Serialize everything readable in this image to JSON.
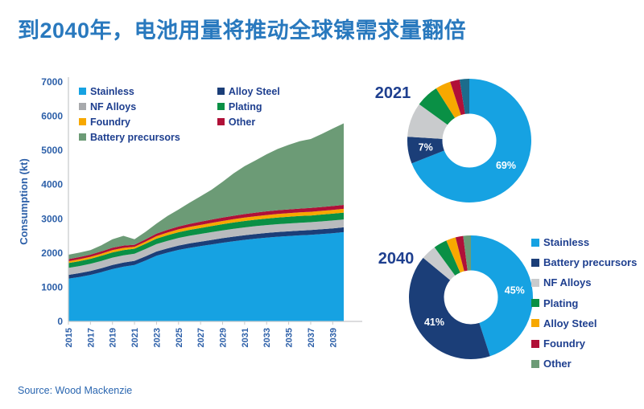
{
  "title": "到2040年，电池用量将推动全球镍需求量翻倍",
  "source": "Source: Wood Mackenzie",
  "colors": {
    "stainless": "#16A2E2",
    "alloy_steel": "#1B3E78",
    "nf_alloys": "#B9BBBE",
    "plating": "#0A9045",
    "foundry": "#F7A800",
    "other": "#B01038",
    "battery_precursors": "#6C9B76",
    "other_donut_2021": "#1C6C8C",
    "donut_gray": "#C9CBCD",
    "title_text": "#2979BE",
    "label_navy": "#1E3F8F",
    "axis_text": "#2C5FA8",
    "axis_line": "#C6C8CA",
    "pct_label_text": "#FFFFFF"
  },
  "area_legend": {
    "columns": [
      [
        {
          "label": "Stainless",
          "color": "#16A2E2"
        },
        {
          "label": "NF Alloys",
          "color": "#A7A9AC"
        },
        {
          "label": "Foundry",
          "color": "#F7A800"
        },
        {
          "label": "Battery precursors",
          "color": "#6C9B76"
        }
      ],
      [
        {
          "label": "Alloy Steel",
          "color": "#1B3E78"
        },
        {
          "label": "Plating",
          "color": "#0A9045"
        },
        {
          "label": "Other",
          "color": "#B01038"
        }
      ]
    ]
  },
  "donut_legend": {
    "items": [
      {
        "label": "Stainless",
        "color": "#16A2E2"
      },
      {
        "label": "Battery precursors",
        "color": "#1B3E78"
      },
      {
        "label": "NF Alloys",
        "color": "#C9CBCD"
      },
      {
        "label": "Plating",
        "color": "#0A9045"
      },
      {
        "label": "Alloy Steel",
        "color": "#F7A800"
      },
      {
        "label": "Foundry",
        "color": "#B01038"
      },
      {
        "label": "Other",
        "color": "#6C9B76"
      }
    ]
  },
  "chart_data": [
    {
      "type": "area",
      "stacked": true,
      "grid": false,
      "ylabel": "Consumption (kt)",
      "xlabel": "",
      "ylim": [
        0,
        7000
      ],
      "y_ticks": [
        0,
        1000,
        2000,
        3000,
        4000,
        5000,
        6000,
        7000
      ],
      "x": [
        2015,
        2016,
        2017,
        2018,
        2019,
        2020,
        2021,
        2022,
        2023,
        2024,
        2025,
        2026,
        2027,
        2028,
        2029,
        2030,
        2031,
        2032,
        2033,
        2034,
        2035,
        2036,
        2037,
        2038,
        2039,
        2040
      ],
      "x_tick_labels": [
        "2015",
        "2017",
        "2019",
        "2021",
        "2023",
        "2025",
        "2027",
        "2029",
        "2031",
        "2033",
        "2035",
        "2037",
        "2039"
      ],
      "series": [
        {
          "name": "Stainless",
          "color": "#16A2E2",
          "values": [
            1250,
            1300,
            1360,
            1440,
            1530,
            1600,
            1650,
            1780,
            1920,
            2010,
            2090,
            2150,
            2200,
            2250,
            2300,
            2345,
            2385,
            2420,
            2450,
            2475,
            2495,
            2515,
            2530,
            2555,
            2580,
            2610
          ]
        },
        {
          "name": "Alloy Steel",
          "color": "#1B3E78",
          "values": [
            110,
            112,
            114,
            116,
            118,
            120,
            120,
            122,
            124,
            126,
            128,
            130,
            131,
            132,
            133,
            134,
            135,
            136,
            137,
            138,
            139,
            140,
            140,
            140,
            140,
            140
          ]
        },
        {
          "name": "NF Alloys",
          "color": "#B9BBBE",
          "values": [
            205,
            207,
            210,
            213,
            216,
            214,
            210,
            214,
            218,
            221,
            223,
            225,
            226,
            227,
            228,
            228,
            229,
            229,
            229,
            230,
            230,
            230,
            230,
            230,
            230,
            230
          ]
        },
        {
          "name": "Plating",
          "color": "#0A9045",
          "values": [
            140,
            143,
            146,
            150,
            154,
            152,
            145,
            152,
            158,
            163,
            167,
            171,
            175,
            178,
            181,
            184,
            187,
            189,
            191,
            193,
            195,
            196,
            197,
            198,
            199,
            200
          ]
        },
        {
          "name": "Foundry",
          "color": "#F7A800",
          "values": [
            55,
            57,
            59,
            62,
            65,
            63,
            58,
            65,
            72,
            78,
            83,
            87,
            90,
            93,
            95,
            97,
            99,
            101,
            103,
            105,
            106,
            107,
            108,
            109,
            110,
            110
          ]
        },
        {
          "name": "Other",
          "color": "#B01038",
          "values": [
            60,
            62,
            64,
            67,
            70,
            68,
            57,
            65,
            73,
            79,
            84,
            88,
            92,
            95,
            98,
            101,
            103,
            105,
            107,
            109,
            110,
            111,
            112,
            113,
            114,
            115
          ]
        },
        {
          "name": "Battery precursors",
          "color": "#6C9B76",
          "values": [
            130,
            130,
            130,
            180,
            250,
            285,
            160,
            220,
            295,
            405,
            495,
            620,
            745,
            875,
            1045,
            1240,
            1400,
            1530,
            1670,
            1790,
            1885,
            1970,
            2015,
            2135,
            2265,
            2385
          ]
        }
      ]
    },
    {
      "type": "pie",
      "donut": true,
      "title": "2021",
      "slices": [
        {
          "label": "Stainless",
          "pct": 69,
          "color": "#16A2E2",
          "pct_label": "69%"
        },
        {
          "label": "Battery precursors",
          "pct": 7,
          "color": "#1B3E78",
          "pct_label": "7%"
        },
        {
          "label": "NF Alloys",
          "pct": 9,
          "color": "#C9CBCD"
        },
        {
          "label": "Plating",
          "pct": 6,
          "color": "#0A9045"
        },
        {
          "label": "Alloy Steel",
          "pct": 4,
          "color": "#F7A800"
        },
        {
          "label": "Foundry",
          "pct": 2.5,
          "color": "#B01038"
        },
        {
          "label": "Other",
          "pct": 2.5,
          "color": "#1C6C8C"
        }
      ]
    },
    {
      "type": "pie",
      "donut": true,
      "title": "2040",
      "slices": [
        {
          "label": "Stainless",
          "pct": 45,
          "color": "#16A2E2",
          "pct_label": "45%"
        },
        {
          "label": "Battery precursors",
          "pct": 41,
          "color": "#1B3E78",
          "pct_label": "41%"
        },
        {
          "label": "NF Alloys",
          "pct": 4,
          "color": "#C9CBCD"
        },
        {
          "label": "Plating",
          "pct": 3.5,
          "color": "#0A9045"
        },
        {
          "label": "Alloy Steel",
          "pct": 2.5,
          "color": "#F7A800"
        },
        {
          "label": "Foundry",
          "pct": 2,
          "color": "#B01038"
        },
        {
          "label": "Other",
          "pct": 2,
          "color": "#6C9B76"
        }
      ]
    }
  ]
}
